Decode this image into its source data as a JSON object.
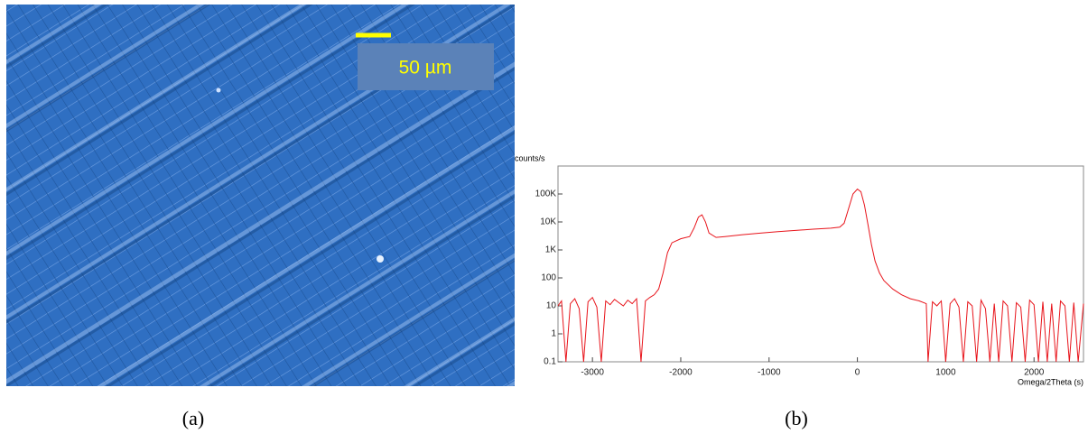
{
  "micrograph": {
    "scale_bar_label": "50 µm",
    "caption": "(a)"
  },
  "chart_data": {
    "type": "line",
    "caption": "(b)",
    "ylabel": "counts/s",
    "xlabel": "Omega/2Theta (s)",
    "color": "#e8141b",
    "log_y": true,
    "x": [
      -3390,
      -3350,
      -3300,
      -3250,
      -3200,
      -3150,
      -3100,
      -3050,
      -3000,
      -2950,
      -2900,
      -2850,
      -2800,
      -2750,
      -2700,
      -2650,
      -2600,
      -2550,
      -2500,
      -2450,
      -2400,
      -2350,
      -2300,
      -2250,
      -2200,
      -2150,
      -2100,
      -2000,
      -1900,
      -1850,
      -1800,
      -1760,
      -1720,
      -1680,
      -1600,
      -1500,
      -1300,
      -1100,
      -900,
      -700,
      -500,
      -300,
      -200,
      -150,
      -100,
      -50,
      0,
      40,
      80,
      120,
      160,
      200,
      250,
      300,
      400,
      500,
      600,
      700,
      780,
      800,
      850,
      900,
      950,
      1000,
      1050,
      1100,
      1150,
      1200,
      1250,
      1300,
      1350,
      1400,
      1450,
      1500,
      1550,
      1600,
      1650,
      1700,
      1750,
      1800,
      1850,
      1900,
      1950,
      2000,
      2050,
      2100,
      2150,
      2200,
      2250,
      2300,
      2350,
      2400,
      2450,
      2500,
      2560
    ],
    "values": [
      10,
      15,
      0.1,
      12,
      18,
      8,
      0.1,
      14,
      20,
      9,
      0.1,
      15,
      11,
      17,
      13,
      10,
      16,
      12,
      18,
      0.1,
      15,
      20,
      25,
      40,
      150,
      800,
      1800,
      2500,
      3000,
      6000,
      15000,
      18000,
      10000,
      4000,
      2800,
      3000,
      3500,
      4000,
      4500,
      5000,
      5500,
      6000,
      6500,
      9000,
      30000,
      100000,
      150000,
      120000,
      40000,
      8000,
      1500,
      400,
      150,
      80,
      40,
      25,
      18,
      15,
      12,
      0.1,
      14,
      10,
      15,
      0.1,
      12,
      18,
      9,
      0.1,
      14,
      10,
      0.1,
      16,
      8,
      0.1,
      12,
      0.1,
      15,
      10,
      0.1,
      13,
      9,
      0.1,
      16,
      11,
      0.1,
      14,
      0.1,
      12,
      0.1,
      15,
      10,
      0.1,
      13,
      0.1,
      12
    ],
    "xlim": [
      -3390,
      2560
    ],
    "xticks": [
      -3000,
      -2000,
      -1000,
      0,
      1000,
      2000
    ],
    "ylim": [
      0.1,
      1000000
    ],
    "yticks": [
      0.1,
      1,
      10,
      100,
      {
        "value": 1000,
        "label": "1K"
      },
      {
        "value": 10000,
        "label": "10K"
      },
      {
        "value": 100000,
        "label": "100K"
      }
    ]
  }
}
